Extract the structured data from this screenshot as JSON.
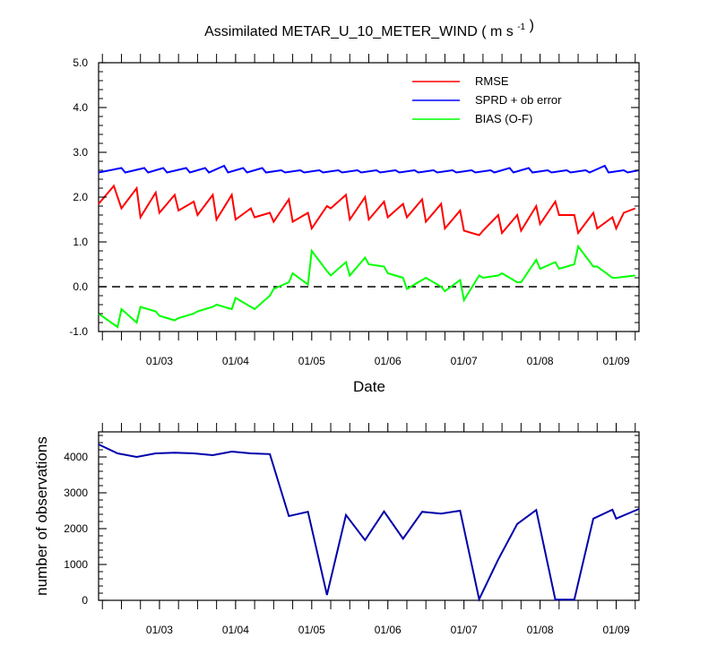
{
  "chart_data": [
    {
      "type": "line",
      "title": "Assimilated METAR_U_10_METER_WIND ( m s",
      "title_units_suffix": "-1",
      "title_close": ")",
      "xlabel": "Date",
      "ylabel": "",
      "xlim": [
        1.2,
        8.3
      ],
      "ylim": [
        -1.0,
        5.0
      ],
      "y_ticks": [
        -1.0,
        0.0,
        1.0,
        2.0,
        3.0,
        4.0,
        5.0
      ],
      "y_tick_labels": [
        "-1.0",
        "0.0",
        "1.0",
        "2.0",
        "3.0",
        "4.0",
        "5.0"
      ],
      "x_ticks": [
        2,
        3,
        4,
        5,
        6,
        7,
        8
      ],
      "x_tick_labels": [
        "01/03",
        "01/04",
        "01/05",
        "01/06",
        "01/07",
        "01/08",
        "01/09"
      ],
      "zero_line": true,
      "legend_position": "top-right",
      "series": [
        {
          "name": "RMSE",
          "color": "#ff0000",
          "x": [
            1.2,
            1.4,
            1.5,
            1.7,
            1.75,
            1.95,
            2.0,
            2.2,
            2.25,
            2.45,
            2.5,
            2.7,
            2.75,
            2.95,
            3.0,
            3.2,
            3.25,
            3.45,
            3.5,
            3.7,
            3.75,
            3.95,
            4.0,
            4.2,
            4.25,
            4.45,
            4.5,
            4.7,
            4.75,
            4.95,
            5.0,
            5.2,
            5.25,
            5.45,
            5.5,
            5.7,
            5.75,
            5.95,
            6.0,
            6.2,
            6.25,
            6.45,
            6.5,
            6.7,
            6.75,
            6.95,
            7.0,
            7.2,
            7.25,
            7.45,
            7.5,
            7.7,
            7.75,
            7.95,
            8.0,
            8.1,
            8.25
          ],
          "values": [
            1.85,
            2.25,
            1.75,
            2.2,
            1.55,
            2.1,
            1.65,
            2.05,
            1.7,
            1.9,
            1.6,
            2.05,
            1.5,
            2.05,
            1.5,
            1.75,
            1.55,
            1.65,
            1.45,
            1.95,
            1.45,
            1.65,
            1.3,
            1.8,
            1.75,
            2.05,
            1.5,
            2.0,
            1.5,
            1.9,
            1.55,
            1.85,
            1.55,
            1.95,
            1.45,
            1.85,
            1.3,
            1.7,
            1.25,
            1.15,
            1.25,
            1.6,
            1.2,
            1.6,
            1.25,
            1.8,
            1.4,
            1.9,
            1.6,
            1.6,
            1.2,
            1.65,
            1.3,
            1.55,
            1.3,
            1.65,
            1.75
          ]
        },
        {
          "name": "SPRD + ob error",
          "color": "#0000ff",
          "x": [
            1.2,
            1.5,
            1.55,
            1.8,
            1.85,
            2.05,
            2.1,
            2.35,
            2.4,
            2.6,
            2.65,
            2.85,
            2.9,
            3.1,
            3.15,
            3.35,
            3.4,
            3.6,
            3.65,
            3.85,
            3.9,
            4.1,
            4.15,
            4.35,
            4.4,
            4.6,
            4.65,
            4.85,
            4.9,
            5.1,
            5.15,
            5.35,
            5.4,
            5.6,
            5.65,
            5.85,
            5.9,
            6.1,
            6.15,
            6.35,
            6.4,
            6.6,
            6.65,
            6.85,
            6.9,
            7.1,
            7.15,
            7.35,
            7.4,
            7.6,
            7.65,
            7.85,
            7.9,
            8.1,
            8.15,
            8.3
          ],
          "values": [
            2.55,
            2.65,
            2.55,
            2.65,
            2.55,
            2.65,
            2.55,
            2.65,
            2.55,
            2.65,
            2.55,
            2.7,
            2.55,
            2.65,
            2.55,
            2.65,
            2.55,
            2.6,
            2.55,
            2.6,
            2.55,
            2.6,
            2.55,
            2.6,
            2.55,
            2.6,
            2.55,
            2.6,
            2.55,
            2.6,
            2.55,
            2.6,
            2.55,
            2.6,
            2.55,
            2.6,
            2.55,
            2.6,
            2.55,
            2.6,
            2.55,
            2.65,
            2.55,
            2.65,
            2.55,
            2.6,
            2.55,
            2.6,
            2.55,
            2.6,
            2.55,
            2.7,
            2.55,
            2.6,
            2.55,
            2.6
          ]
        },
        {
          "name": "BIAS (O-F)",
          "color": "#00ff00",
          "x": [
            1.2,
            1.45,
            1.5,
            1.7,
            1.75,
            1.95,
            2.0,
            2.2,
            2.25,
            2.45,
            2.5,
            2.7,
            2.75,
            2.95,
            3.0,
            3.2,
            3.25,
            3.45,
            3.5,
            3.7,
            3.75,
            3.95,
            4.0,
            4.2,
            4.25,
            4.45,
            4.5,
            4.7,
            4.75,
            4.95,
            5.0,
            5.2,
            5.25,
            5.45,
            5.5,
            5.7,
            5.75,
            5.95,
            6.0,
            6.2,
            6.25,
            6.45,
            6.5,
            6.7,
            6.75,
            6.95,
            7.0,
            7.2,
            7.25,
            7.45,
            7.5,
            7.7,
            7.75,
            7.95,
            8.0,
            8.25
          ],
          "values": [
            -0.6,
            -0.9,
            -0.5,
            -0.8,
            -0.45,
            -0.55,
            -0.65,
            -0.75,
            -0.7,
            -0.6,
            -0.55,
            -0.45,
            -0.4,
            -0.5,
            -0.25,
            -0.45,
            -0.5,
            -0.2,
            -0.05,
            0.1,
            0.3,
            0.05,
            0.8,
            0.35,
            0.25,
            0.55,
            0.25,
            0.65,
            0.5,
            0.45,
            0.3,
            0.2,
            -0.05,
            0.15,
            0.2,
            0.0,
            -0.1,
            0.15,
            -0.3,
            0.25,
            0.2,
            0.25,
            0.3,
            0.1,
            0.1,
            0.6,
            0.4,
            0.55,
            0.4,
            0.5,
            0.9,
            0.45,
            0.45,
            0.2,
            0.2,
            0.25
          ]
        }
      ]
    },
    {
      "type": "line",
      "title": "",
      "xlabel": "",
      "ylabel": "number of observations",
      "xlim": [
        1.2,
        8.3
      ],
      "ylim": [
        0,
        4700
      ],
      "y_ticks": [
        0,
        1000,
        2000,
        3000,
        4000
      ],
      "y_tick_labels": [
        "0",
        "1000",
        "2000",
        "3000",
        "4000"
      ],
      "x_ticks": [
        2,
        3,
        4,
        5,
        6,
        7,
        8
      ],
      "x_tick_labels": [
        "01/03",
        "01/04",
        "01/05",
        "01/06",
        "01/07",
        "01/08",
        "01/09"
      ],
      "series": [
        {
          "name": "observations",
          "color": "#0000aa",
          "x": [
            1.2,
            1.45,
            1.7,
            1.95,
            2.2,
            2.45,
            2.7,
            2.95,
            3.2,
            3.45,
            3.7,
            3.95,
            4.2,
            4.45,
            4.7,
            4.95,
            5.2,
            5.45,
            5.7,
            5.95,
            6.2,
            6.45,
            6.7,
            6.95,
            7.2,
            7.45,
            7.7,
            7.95,
            8.0,
            8.3
          ],
          "values": [
            4350,
            4100,
            4000,
            4100,
            4120,
            4100,
            4050,
            4150,
            4100,
            4080,
            2350,
            2470,
            150,
            2380,
            1680,
            2480,
            1720,
            2470,
            2420,
            2500,
            30,
            1140,
            2130,
            2520,
            20,
            20,
            2280,
            2530,
            2280,
            2550
          ]
        }
      ]
    }
  ]
}
